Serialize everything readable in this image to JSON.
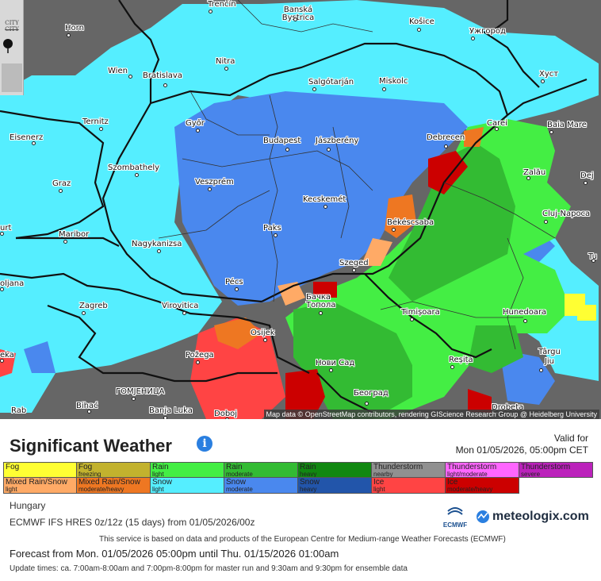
{
  "map": {
    "attribution": "Map data © OpenStreetMap contributors, rendering GIScience Research Group @ Heidelberg University",
    "controls": {
      "city_toggle_top": "CITY",
      "city_toggle_bottom": "CITY"
    },
    "cities": [
      {
        "name": "Trenčín"
      },
      {
        "name": "Banská Bystrica"
      },
      {
        "name": "Košice"
      },
      {
        "name": "Horn"
      },
      {
        "name": "Ужгород"
      },
      {
        "name": "Nitra"
      },
      {
        "name": "Wien"
      },
      {
        "name": "Bratislava"
      },
      {
        "name": "Salgótarján"
      },
      {
        "name": "Miskolc"
      },
      {
        "name": "Хуст"
      },
      {
        "name": "Ternitz"
      },
      {
        "name": "Győr"
      },
      {
        "name": "Budapest"
      },
      {
        "name": "Jászberény"
      },
      {
        "name": "Debrecen"
      },
      {
        "name": "Carei"
      },
      {
        "name": "Baia Mare"
      },
      {
        "name": "Eisenerz"
      },
      {
        "name": "Szombathely"
      },
      {
        "name": "Zalău"
      },
      {
        "name": "Dej"
      },
      {
        "name": "Graz"
      },
      {
        "name": "Veszprém"
      },
      {
        "name": "Kecskemét"
      },
      {
        "name": "Békéscsaba"
      },
      {
        "name": "Cluj-Napoca"
      },
      {
        "name": "urt"
      },
      {
        "name": "Maribor"
      },
      {
        "name": "Nagykanizsa"
      },
      {
        "name": "Paks"
      },
      {
        "name": "Szeged"
      },
      {
        "name": "Tu"
      },
      {
        "name": "oljana"
      },
      {
        "name": "Pécs"
      },
      {
        "name": "Бачка Топола"
      },
      {
        "name": "Zagreb"
      },
      {
        "name": "Virovitica"
      },
      {
        "name": "Timișoara"
      },
      {
        "name": "Hunedoara"
      },
      {
        "name": "Osijek"
      },
      {
        "name": "eka"
      },
      {
        "name": "Požega"
      },
      {
        "name": "Нови Сад"
      },
      {
        "name": "Reșița"
      },
      {
        "name": "Târgu Jiu"
      },
      {
        "name": "ГОМЈЕНИЦА"
      },
      {
        "name": "Београд"
      },
      {
        "name": "Bihać"
      },
      {
        "name": "Banja Luka"
      },
      {
        "name": "Doboj"
      },
      {
        "name": "Drobeta"
      },
      {
        "name": "Rab"
      }
    ]
  },
  "header": {
    "title": "Significant Weather",
    "info_icon": "i",
    "valid_label": "Valid for",
    "valid_time": "Mon 01/05/2026, 05:00pm CET"
  },
  "legend": {
    "rows": [
      [
        {
          "name": "Fog",
          "sub": "",
          "color": "#ffff33"
        },
        {
          "name": "Fog",
          "sub": "freezing",
          "color": "#c2b22e"
        },
        {
          "name": "Rain",
          "sub": "light",
          "color": "#44ee44"
        },
        {
          "name": "Rain",
          "sub": "moderate",
          "color": "#33bb33"
        },
        {
          "name": "Rain",
          "sub": "heavy",
          "color": "#118811"
        },
        {
          "name": "Thunderstorm",
          "sub": "nearby",
          "color": "#909090"
        },
        {
          "name": "Thunderstorm",
          "sub": "light/moderate",
          "color": "#ff66ff"
        },
        {
          "name": "Thunderstorm",
          "sub": "severe",
          "color": "#bb22bb"
        }
      ],
      [
        {
          "name": "Mixed Rain/Snow",
          "sub": "light",
          "color": "#ffaa66"
        },
        {
          "name": "Mixed Rain/Snow",
          "sub": "moderate/heavy",
          "color": "#ee7722"
        },
        {
          "name": "Snow",
          "sub": "light",
          "color": "#55eeff"
        },
        {
          "name": "Snow",
          "sub": "moderate",
          "color": "#4a88ee"
        },
        {
          "name": "Snow",
          "sub": "heavy",
          "color": "#2255aa"
        },
        {
          "name": "Ice",
          "sub": "light",
          "color": "#ff4444"
        },
        {
          "name": "Ice",
          "sub": "moderate/heavy",
          "color": "#cc0000"
        }
      ]
    ]
  },
  "meta": {
    "region": "Hungary",
    "model": "ECMWF IFS HRES 0z/12z (15 days) from 01/05/2026/00z",
    "ecmwf_note": "This service is based on data and products of the European Centre for Medium-range Weather Forecasts (ECMWF)",
    "forecast_range": "Forecast from Mon. 01/05/2026 05:00pm until Thu. 01/15/2026 01:00am",
    "update_times": "Update times: ca. 7:00am-8:00am and 7:00pm-8:00pm for master run and 9:30am and 9:30pm for ensemble data"
  },
  "logos": {
    "ecmwf": "ECMWF",
    "meteologix": "meteologix.com"
  },
  "colors": {
    "no_data": "#666666",
    "snow_light": "#55eeff",
    "snow_moderate": "#4a88ee",
    "rain_light": "#44ee44",
    "rain_moderate": "#33bb33",
    "ice_light": "#ff4444",
    "ice_heavy": "#cc0000",
    "mixed_light": "#ffaa66",
    "mixed_heavy": "#ee7722",
    "fog": "#ffff33",
    "border": "#111111"
  }
}
